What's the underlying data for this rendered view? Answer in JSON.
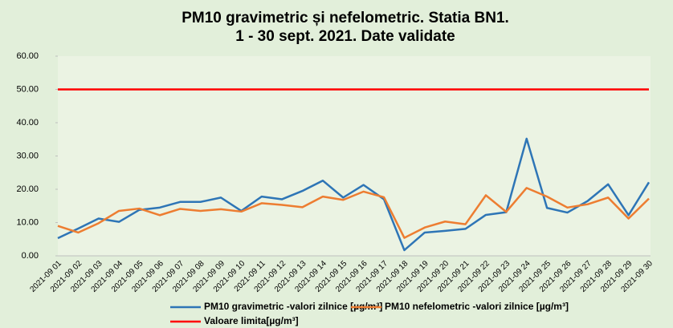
{
  "chart_data": {
    "type": "line",
    "title": [
      "PM10 gravimetric și nefelometric. Statia BN1.",
      "1 - 30 sept. 2021. Date validate"
    ],
    "categories": [
      "2021-09 01",
      "2021-09 02",
      "2021-09 03",
      "2021-09 04",
      "2021-09 05",
      "2021-09 06",
      "2021-09 07",
      "2021-09 08",
      "2021-09 09",
      "2021-09 10",
      "2021-09 11",
      "2021-09 12",
      "2021-09 13",
      "2021-09 14",
      "2021-09 15",
      "2021-09 16",
      "2021-09 17",
      "2021-09 18",
      "2021-09 19",
      "2021-09 20",
      "2021-09 21",
      "2021-09 22",
      "2021-09 23",
      "2021-09 24",
      "2021-09 25",
      "2021-09 26",
      "2021-09 27",
      "2021-09 28",
      "2021-09 29",
      "2021-09 30"
    ],
    "series": [
      {
        "name": "PM10 gravimetric -valori zilnice [µg/m³]",
        "color": "#2e75b6",
        "values": [
          5.3,
          8.2,
          11.2,
          10.2,
          13.8,
          14.5,
          16.2,
          16.2,
          17.5,
          13.5,
          17.8,
          17.0,
          19.5,
          22.6,
          17.5,
          21.3,
          17.0,
          1.7,
          7.0,
          7.5,
          8.1,
          12.3,
          13.1,
          35.2,
          14.4,
          13.0,
          16.5,
          21.5,
          12.2,
          22.1
        ]
      },
      {
        "name": "PM10 nefelometric -valori zilnice [µg/m³]",
        "color": "#ed7d31",
        "values": [
          9.0,
          7.0,
          9.8,
          13.5,
          14.2,
          12.2,
          14.1,
          13.5,
          14.0,
          13.3,
          15.8,
          15.3,
          14.6,
          17.8,
          16.8,
          19.3,
          17.6,
          5.4,
          8.5,
          10.3,
          9.5,
          18.2,
          13.2,
          20.4,
          17.8,
          14.5,
          15.5,
          17.5,
          11.2,
          17.2
        ]
      },
      {
        "name": "Valoare limita[µg/m³]",
        "color": "#ff0000",
        "values": [
          50,
          50,
          50,
          50,
          50,
          50,
          50,
          50,
          50,
          50,
          50,
          50,
          50,
          50,
          50,
          50,
          50,
          50,
          50,
          50,
          50,
          50,
          50,
          50,
          50,
          50,
          50,
          50,
          50,
          50
        ]
      }
    ],
    "ylim": [
      0,
      60
    ],
    "yticks": [
      {
        "value": 0,
        "label": "0.00"
      },
      {
        "value": 10,
        "label": "10.00"
      },
      {
        "value": 20,
        "label": "20.00"
      },
      {
        "value": 30,
        "label": "30.00"
      },
      {
        "value": 40,
        "label": "40.00"
      },
      {
        "value": 50,
        "label": "50.00"
      },
      {
        "value": 60,
        "label": "60.00"
      }
    ]
  }
}
